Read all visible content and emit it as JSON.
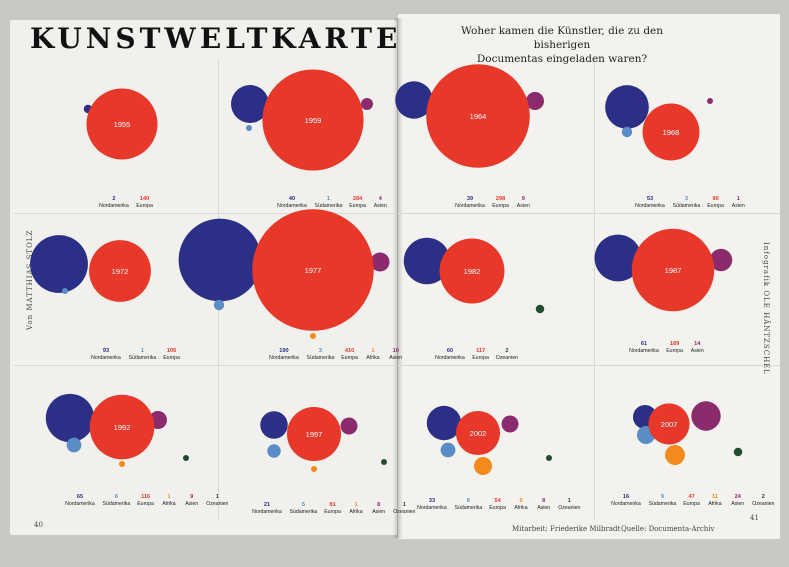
{
  "header": {
    "title": "KUNSTWELTKARTE",
    "subtitle_line1": "Woher kamen die Künstler, die zu den bisherigen",
    "subtitle_line2": "Documentas eingeladen waren?"
  },
  "side_left": "Von MATTHIAS STOLZ",
  "side_right": "Infografik OLE HÄNTZSCHEL",
  "footer": {
    "credit": "Mitarbeit: Friederike Milbradt",
    "source": "Quelle: Documenta-Archiv",
    "page_left": "40",
    "page_right": "41"
  },
  "colors": {
    "Nordamerika": "#2b2f86",
    "Südamerika": "#5a8cc6",
    "Europa": "#e8382a",
    "Asien": "#8c2a6e",
    "Afrika": "#f28a1c",
    "Ozeanien": "#1f4d2e"
  },
  "chart_data": {
    "type": "bubble",
    "title": "KUNSTWELTKARTE",
    "subtitle": "Woher kamen die Künstler, die zu den bisherigen Documentas eingeladen waren?",
    "series_names": [
      "Nordamerika",
      "Südamerika",
      "Europa",
      "Afrika",
      "Asien",
      "Ozeanien"
    ],
    "editions": [
      {
        "year": "1955",
        "values": [
          {
            "region": "Nordamerika",
            "value": 2
          },
          {
            "region": "Europa",
            "value": 140
          }
        ]
      },
      {
        "year": "1959",
        "values": [
          {
            "region": "Nordamerika",
            "value": 40
          },
          {
            "region": "Südamerika",
            "value": 1
          },
          {
            "region": "Europa",
            "value": 284
          },
          {
            "region": "Asien",
            "value": 4
          }
        ]
      },
      {
        "year": "1964",
        "values": [
          {
            "region": "Nordamerika",
            "value": 39
          },
          {
            "region": "Europa",
            "value": 298
          },
          {
            "region": "Asien",
            "value": 9
          }
        ]
      },
      {
        "year": "1968",
        "values": [
          {
            "region": "Nordamerika",
            "value": 53
          },
          {
            "region": "Südamerika",
            "value": 3
          },
          {
            "region": "Europa",
            "value": 90
          },
          {
            "region": "Asien",
            "value": 1
          }
        ]
      },
      {
        "year": "1972",
        "values": [
          {
            "region": "Nordamerika",
            "value": 93
          },
          {
            "region": "Südamerika",
            "value": 1
          },
          {
            "region": "Europa",
            "value": 106
          }
        ]
      },
      {
        "year": "1977",
        "values": [
          {
            "region": "Nordamerika",
            "value": 190
          },
          {
            "region": "Südamerika",
            "value": 3
          },
          {
            "region": "Europa",
            "value": 410
          },
          {
            "region": "Afrika",
            "value": 1
          },
          {
            "region": "Asien",
            "value": 10
          }
        ]
      },
      {
        "year": "1982",
        "values": [
          {
            "region": "Nordamerika",
            "value": 60
          },
          {
            "region": "Europa",
            "value": 117
          },
          {
            "region": "Ozeanien",
            "value": 2
          }
        ]
      },
      {
        "year": "1987",
        "values": [
          {
            "region": "Nordamerika",
            "value": 61
          },
          {
            "region": "Europa",
            "value": 189
          },
          {
            "region": "Asien",
            "value": 14
          }
        ]
      },
      {
        "year": "1992",
        "values": [
          {
            "region": "Nordamerika",
            "value": 65
          },
          {
            "region": "Südamerika",
            "value": 6
          },
          {
            "region": "Europa",
            "value": 116
          },
          {
            "region": "Afrika",
            "value": 1
          },
          {
            "region": "Asien",
            "value": 9
          },
          {
            "region": "Ozeanien",
            "value": 1
          }
        ]
      },
      {
        "year": "1997",
        "values": [
          {
            "region": "Nordamerika",
            "value": 21
          },
          {
            "region": "Südamerika",
            "value": 5
          },
          {
            "region": "Europa",
            "value": 81
          },
          {
            "region": "Afrika",
            "value": 1
          },
          {
            "region": "Asien",
            "value": 8
          },
          {
            "region": "Ozeanien",
            "value": 1
          }
        ]
      },
      {
        "year": "2002",
        "values": [
          {
            "region": "Nordamerika",
            "value": 33
          },
          {
            "region": "Südamerika",
            "value": 6
          },
          {
            "region": "Europa",
            "value": 54
          },
          {
            "region": "Afrika",
            "value": 9
          },
          {
            "region": "Asien",
            "value": 8
          },
          {
            "region": "Ozeanien",
            "value": 1
          }
        ]
      },
      {
        "year": "2007",
        "values": [
          {
            "region": "Nordamerika",
            "value": 16
          },
          {
            "region": "Südamerika",
            "value": 9
          },
          {
            "region": "Europa",
            "value": 47
          },
          {
            "region": "Afrika",
            "value": 11
          },
          {
            "region": "Asien",
            "value": 24
          },
          {
            "region": "Ozeanien",
            "value": 2
          }
        ]
      }
    ]
  }
}
